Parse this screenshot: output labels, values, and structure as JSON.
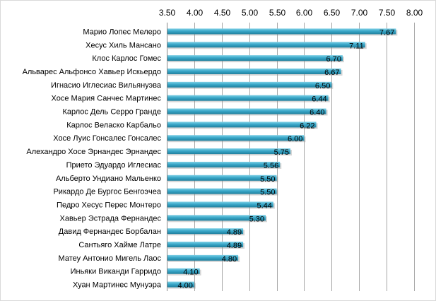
{
  "chart_data": {
    "type": "bar",
    "orientation": "horizontal",
    "title": "",
    "xlabel": "",
    "ylabel": "",
    "xaxis_position": "top",
    "xlim": [
      3.5,
      8.0
    ],
    "xticks": [
      "3.50",
      "4.00",
      "4.50",
      "5.00",
      "5.50",
      "6.00",
      "6.50",
      "7.00",
      "7.50",
      "8.00"
    ],
    "grid": true,
    "legend": "none",
    "bar_color": "#3aa8c9",
    "categories": [
      "Марио Лопес Мелеро",
      "Хесус Хиль Мансано",
      "Клос Карлос Гомес",
      "Альварес Альфонсо Хавьер Искьердо",
      "Игнасио Иглесиас Вильянуэва",
      "Хосе Мария Санчес Мартинес",
      "Карлос Дель Серро Гранде",
      "Карлос Веласко Карбальо",
      "Хосе Луис Гонсалес Гонсалес",
      "Алехандро Хосе Эрнандес Эрнандес",
      "Прието Эдуардо Иглесиас",
      "Альберто  Ундиано Мальенко",
      "Рикардо Де Бургос Бенгоэчеа",
      "Педро Хесус Перес  Монтеро",
      "Хавьер Эстрада Фернандес",
      "Давид Фернандес Борбалан",
      "Сантьяго Хайме Латре",
      "Матеу Антонио Мигель Лаос",
      "Иньяки  Виканди Гарридо",
      "Хуан Мартинес Мунуэра"
    ],
    "values": [
      7.67,
      7.11,
      6.7,
      6.67,
      6.5,
      6.44,
      6.4,
      6.22,
      6.0,
      5.75,
      5.56,
      5.5,
      5.5,
      5.44,
      5.3,
      4.89,
      4.89,
      4.8,
      4.1,
      4.0
    ],
    "value_labels": [
      "7.67",
      "7.11",
      "6.70",
      "6.67",
      "6.50",
      "6.44",
      "6.40",
      "6.22",
      "6.00",
      "5.75",
      "5.56",
      "5.50",
      "5.50",
      "5.44",
      "5.30",
      "4.89",
      "4.89",
      "4.80",
      "4.10",
      "4.00"
    ]
  }
}
